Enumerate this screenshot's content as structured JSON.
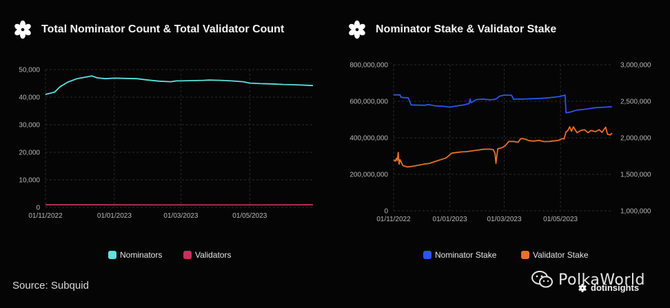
{
  "source_label": "Source: Subquid",
  "watermark": {
    "name": "PolkaWorld",
    "sub": "dotinsights"
  },
  "colors": {
    "nominators": "#5ee2e0",
    "validators": "#c8315c",
    "nominator_stake": "#2a55f0",
    "validator_stake": "#e8702a",
    "grid": "#2a2a2a"
  },
  "chart_data": [
    {
      "type": "line",
      "title": "Total Nominator Count & Total Validator Count",
      "x_tick_labels": [
        "01/11/2022",
        "01/01/2023",
        "01/03/2023",
        "01/05/2023"
      ],
      "xlim": [
        "2022-11-01",
        "2023-06-26"
      ],
      "y_ticks": [
        0,
        10000,
        20000,
        30000,
        40000,
        50000
      ],
      "y_tick_labels": [
        "0",
        "10,000",
        "20,000",
        "30,000",
        "40,000",
        "50,000"
      ],
      "ylim": [
        0,
        50000
      ],
      "grid": true,
      "legend_position": "bottom-center",
      "series": [
        {
          "name": "Nominators",
          "color": "#5ee2e0",
          "points": [
            [
              "2022-11-01",
              41000
            ],
            [
              "2022-11-09",
              41800
            ],
            [
              "2022-11-14",
              43800
            ],
            [
              "2022-11-21",
              45500
            ],
            [
              "2022-11-29",
              46700
            ],
            [
              "2022-12-07",
              47300
            ],
            [
              "2022-12-12",
              47700
            ],
            [
              "2022-12-17",
              47000
            ],
            [
              "2022-12-24",
              46700
            ],
            [
              "2023-01-01",
              46900
            ],
            [
              "2023-01-11",
              46800
            ],
            [
              "2023-01-21",
              46700
            ],
            [
              "2023-01-31",
              46200
            ],
            [
              "2023-02-10",
              45800
            ],
            [
              "2023-02-20",
              45600
            ],
            [
              "2023-02-25",
              45900
            ],
            [
              "2023-03-01",
              45900
            ],
            [
              "2023-03-11",
              46000
            ],
            [
              "2023-03-21",
              46100
            ],
            [
              "2023-03-26",
              46200
            ],
            [
              "2023-04-05",
              46100
            ],
            [
              "2023-04-15",
              45900
            ],
            [
              "2023-04-25",
              45600
            ],
            [
              "2023-05-01",
              45100
            ],
            [
              "2023-05-11",
              44900
            ],
            [
              "2023-05-21",
              44800
            ],
            [
              "2023-05-31",
              44600
            ],
            [
              "2023-06-10",
              44500
            ],
            [
              "2023-06-26",
              44200
            ]
          ]
        },
        {
          "name": "Validators",
          "color": "#c8315c",
          "points": [
            [
              "2022-11-01",
              950
            ],
            [
              "2022-12-15",
              950
            ],
            [
              "2023-02-01",
              900
            ],
            [
              "2023-03-15",
              900
            ],
            [
              "2023-05-01",
              900
            ],
            [
              "2023-06-26",
              950
            ]
          ]
        }
      ]
    },
    {
      "type": "line",
      "title": "Nominator Stake & Validator Stake",
      "x_tick_labels": [
        "01/11/2022",
        "01/01/2023",
        "01/03/2023",
        "01/05/2023"
      ],
      "xlim": [
        "2022-11-01",
        "2023-06-26"
      ],
      "y_left_ticks": [
        0,
        200000000,
        400000000,
        600000000,
        800000000
      ],
      "y_left_tick_labels": [
        "0",
        "200,000,000",
        "400,000,000",
        "600,000,000",
        "800,000,000"
      ],
      "ylim_left": [
        0,
        800000000
      ],
      "y_right_ticks": [
        1000000,
        1500000,
        2000000,
        2500000,
        3000000
      ],
      "y_right_tick_labels": [
        "1,000,000",
        "1,500,000",
        "2,000,000",
        "2,500,000",
        "3,000,000"
      ],
      "ylim_right": [
        1000000,
        3000000
      ],
      "grid": true,
      "legend_position": "bottom-center",
      "series": [
        {
          "name": "Nominator Stake",
          "axis": "left",
          "color": "#2a55f0",
          "points": [
            [
              "2022-11-01",
              635000000
            ],
            [
              "2022-11-08",
              635000000
            ],
            [
              "2022-11-09",
              622000000
            ],
            [
              "2022-11-17",
              618000000
            ],
            [
              "2022-11-20",
              580000000
            ],
            [
              "2022-12-05",
              578000000
            ],
            [
              "2022-12-09",
              582000000
            ],
            [
              "2022-12-16",
              575000000
            ],
            [
              "2022-12-26",
              572000000
            ],
            [
              "2023-01-01",
              568000000
            ],
            [
              "2023-01-09",
              575000000
            ],
            [
              "2023-01-16",
              580000000
            ],
            [
              "2023-01-22",
              588000000
            ],
            [
              "2023-01-23",
              612000000
            ],
            [
              "2023-01-24",
              592000000
            ],
            [
              "2023-01-26",
              598000000
            ],
            [
              "2023-01-30",
              610000000
            ],
            [
              "2023-02-06",
              612000000
            ],
            [
              "2023-02-14",
              608000000
            ],
            [
              "2023-02-20",
              612000000
            ],
            [
              "2023-02-24",
              628000000
            ],
            [
              "2023-03-01",
              634000000
            ],
            [
              "2023-03-09",
              633000000
            ],
            [
              "2023-03-11",
              612000000
            ],
            [
              "2023-03-21",
              612000000
            ],
            [
              "2023-03-31",
              614000000
            ],
            [
              "2023-04-10",
              616000000
            ],
            [
              "2023-04-20",
              620000000
            ],
            [
              "2023-04-30",
              626000000
            ],
            [
              "2023-05-06",
              634000000
            ],
            [
              "2023-05-07",
              537000000
            ],
            [
              "2023-05-11",
              540000000
            ],
            [
              "2023-05-19",
              552000000
            ],
            [
              "2023-05-29",
              557000000
            ],
            [
              "2023-06-08",
              565000000
            ],
            [
              "2023-06-18",
              568000000
            ],
            [
              "2023-06-26",
              570000000
            ]
          ]
        },
        {
          "name": "Validator Stake",
          "axis": "right",
          "color": "#e8702a",
          "points": [
            [
              "2022-11-01",
              1700000
            ],
            [
              "2022-11-03",
              1680000
            ],
            [
              "2022-11-04",
              1720000
            ],
            [
              "2022-11-05",
              1690000
            ],
            [
              "2022-11-06",
              1800000
            ],
            [
              "2022-11-07",
              1640000
            ],
            [
              "2022-11-08",
              1700000
            ],
            [
              "2022-11-11",
              1620000
            ],
            [
              "2022-11-16",
              1600000
            ],
            [
              "2022-11-22",
              1610000
            ],
            [
              "2022-11-28",
              1625000
            ],
            [
              "2022-12-04",
              1640000
            ],
            [
              "2022-12-10",
              1650000
            ],
            [
              "2022-12-16",
              1675000
            ],
            [
              "2022-12-22",
              1700000
            ],
            [
              "2022-12-28",
              1725000
            ],
            [
              "2023-01-03",
              1790000
            ],
            [
              "2023-01-09",
              1800000
            ],
            [
              "2023-01-14",
              1808000
            ],
            [
              "2023-01-19",
              1810000
            ],
            [
              "2023-01-24",
              1820000
            ],
            [
              "2023-01-27",
              1825000
            ],
            [
              "2023-02-02",
              1835000
            ],
            [
              "2023-02-06",
              1842000
            ],
            [
              "2023-02-12",
              1845000
            ],
            [
              "2023-02-17",
              1840000
            ],
            [
              "2023-02-19",
              1790000
            ],
            [
              "2023-02-20",
              1650000
            ],
            [
              "2023-02-22",
              1850000
            ],
            [
              "2023-02-26",
              1862000
            ],
            [
              "2023-03-02",
              1890000
            ],
            [
              "2023-03-06",
              1950000
            ],
            [
              "2023-03-11",
              1950000
            ],
            [
              "2023-03-16",
              1940000
            ],
            [
              "2023-03-19",
              1990000
            ],
            [
              "2023-03-23",
              1985000
            ],
            [
              "2023-03-28",
              1960000
            ],
            [
              "2023-04-02",
              1955000
            ],
            [
              "2023-04-08",
              1965000
            ],
            [
              "2023-04-13",
              1948000
            ],
            [
              "2023-04-19",
              1950000
            ],
            [
              "2023-04-26",
              1960000
            ],
            [
              "2023-04-29",
              1965000
            ],
            [
              "2023-05-03",
              1990000
            ],
            [
              "2023-05-05",
              1985000
            ],
            [
              "2023-05-07",
              2080000
            ],
            [
              "2023-05-09",
              2100000
            ],
            [
              "2023-05-11",
              2150000
            ],
            [
              "2023-05-13",
              2090000
            ],
            [
              "2023-05-15",
              2150000
            ],
            [
              "2023-05-19",
              2070000
            ],
            [
              "2023-05-23",
              2100000
            ],
            [
              "2023-05-27",
              2110000
            ],
            [
              "2023-05-31",
              2070000
            ],
            [
              "2023-06-03",
              2100000
            ],
            [
              "2023-06-08",
              2085000
            ],
            [
              "2023-06-12",
              2110000
            ],
            [
              "2023-06-15",
              2075000
            ],
            [
              "2023-06-19",
              2145000
            ],
            [
              "2023-06-21",
              2050000
            ],
            [
              "2023-06-24",
              2040000
            ],
            [
              "2023-06-26",
              2065000
            ]
          ]
        }
      ]
    }
  ]
}
